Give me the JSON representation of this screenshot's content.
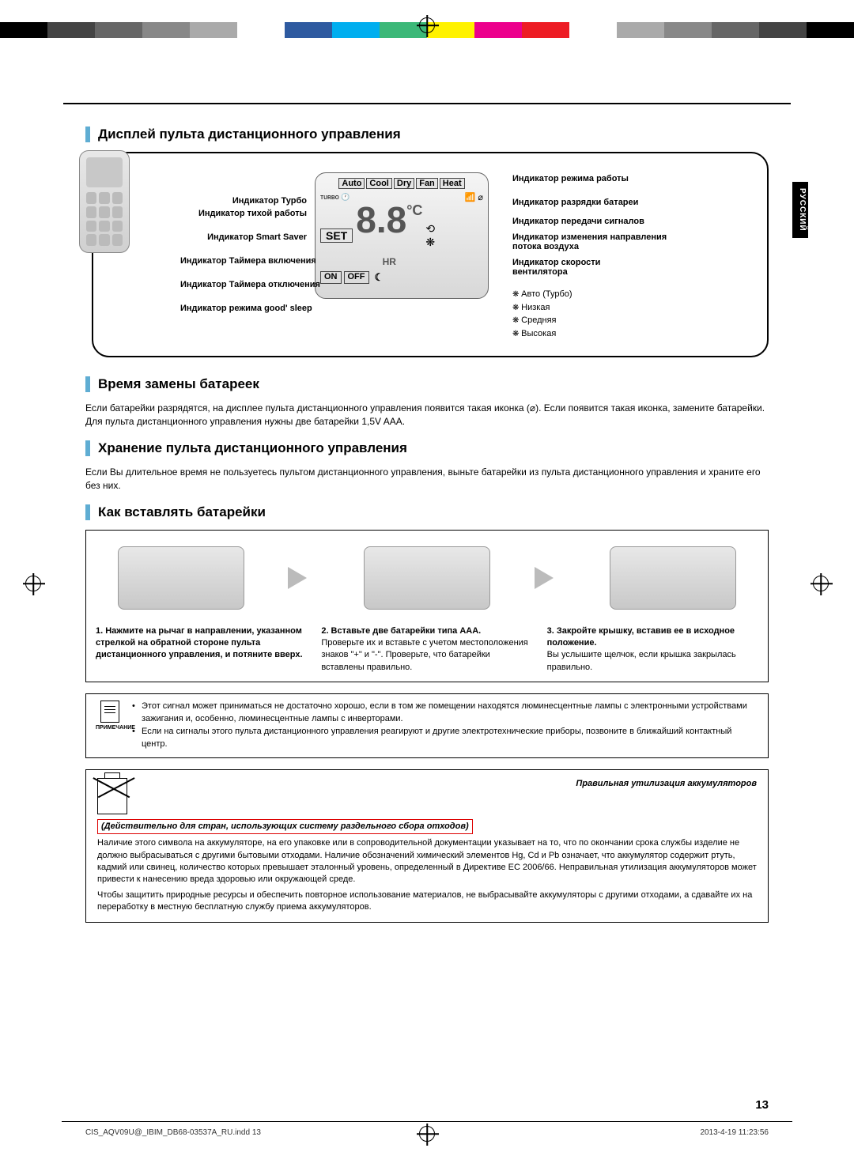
{
  "colorbar": [
    "#000000",
    "#444444",
    "#666666",
    "#888888",
    "#aaaaaa",
    "#ffffff",
    "#2e5aa0",
    "#00aeef",
    "#3cb878",
    "#fff200",
    "#ec008c",
    "#ed1c24",
    "#ffffff",
    "#aaaaaa",
    "#888888",
    "#666666",
    "#444444",
    "#000000"
  ],
  "lang_tab": "РУССКИЙ",
  "section1_title": "Дисплей пульта дистанционного управления",
  "lcd": {
    "modes": [
      "Auto",
      "Cool",
      "Dry",
      "Fan",
      "Heat"
    ],
    "set": "SET",
    "deg": "°C",
    "hr": "HR",
    "on": "ON",
    "off": "OFF",
    "digits": "8.8"
  },
  "labels_left": [
    "Индикатор Турбо",
    "Индикатор тихой работы",
    "Индикатор Smart Saver",
    "Индикатор Таймера включения",
    "Индикатор Таймера отключения",
    "Индикатор режима good' sleep"
  ],
  "labels_right": [
    "Индикатор режима работы",
    "Индикатор разрядки батареи",
    "Индикатор передачи сигналов",
    "Индикатор изменения направления потока воздуха",
    "Индикатор скорости вентилятора"
  ],
  "fan_speeds": [
    "Авто (Турбо)",
    "Низкая",
    "Средняя",
    "Высокая"
  ],
  "section2_title": "Время замены батареек",
  "section2_body": "Если батарейки разрядятся, на дисплее пульта дистанционного управления появится такая иконка (⌀). Если появится такая иконка, замените батарейки. Для пульта дистанционного управления нужны две батарейки 1,5V AAA.",
  "section3_title": "Хранение пульта дистанционного управления",
  "section3_body": "Если Вы длительное время не пользуетесь пультом дистанционного управления, выньте батарейки из пульта дистанционного управления и храните его без них.",
  "section4_title": "Как вставлять батарейки",
  "steps": [
    {
      "h": "1. Нажмите на рычаг в направлении, указанном стрелкой на обратной стороне пульта дистанционного управления, и потяните вверх.",
      "b": ""
    },
    {
      "h": "2. Вставьте две батарейки типа AAA.",
      "b": "Проверьте их и вставьте с учетом местоположения знаков \"+\" и \"-\". Проверьте, что батарейки вставлены правильно."
    },
    {
      "h": "3. Закройте крышку, вставив ее в исходное положение.",
      "b": "Вы услышите щелчок, если крышка закрылась правильно."
    }
  ],
  "note_label": "ПРИМЕЧАНИЕ",
  "notes": [
    "Этот сигнал может приниматься не достаточно хорошо, если в том же помещении находятся люминесцентные лампы с электронными устройствами зажигания и, особенно, люминесцентные лампы с инверторами.",
    "Если на сигналы этого пульта дистанционного управления реагируют и другие электротехнические приборы, позвоните в ближайший контактный центр."
  ],
  "disposal_title": "Правильная утилизация аккумуляторов",
  "disposal_redbox": "(Действительно для стран, использующих систему раздельного сбора отходов)",
  "disposal_p1": "Наличие этого символа на аккумуляторе, на его упаковке или в сопроводительной документации указывает на то, что по окончании срока службы изделие не должно выбрасываться с другими бытовыми отходами. Наличие обозначений химический элементов Hg, Cd и Pb означает, что аккумулятор содержит ртуть, кадмий или свинец, количество которых превышает эталонный уровень, определенный в Директиве EC 2006/66. Неправильная утилизация аккумуляторов может привести к нанесению вреда здоровью или окружающей среде.",
  "disposal_p2": "Чтобы защитить природные ресурсы и обеспечить повторное использование материалов, не выбрасывайте аккумуляторы с другими отходами, а сдавайте их на переработку в местную бесплатную службу приема аккумуляторов.",
  "page_number": "13",
  "footer_left": "CIS_AQV09U@_IBIM_DB68-03537A_RU.indd   13",
  "footer_right": "2013-4-19   11:23:56"
}
